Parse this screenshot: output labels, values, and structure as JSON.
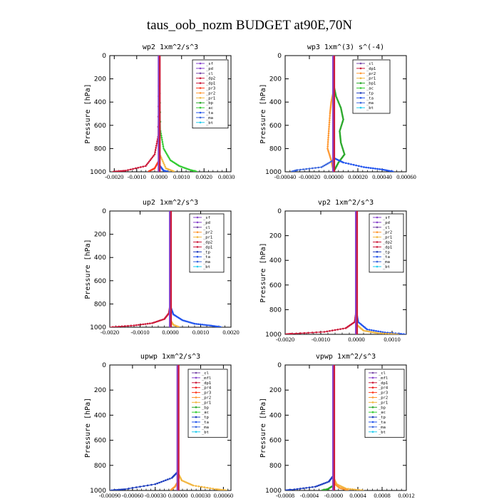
{
  "figure_title": "taus_oob_nozm  BUDGET at90E,70N",
  "colors": {
    "_sf": "#8844cc",
    "_pd": "#8844cc",
    "_cl": "#7a4aa8",
    "_mfl": "#8844cc",
    "_dp1": "#cc1a3a",
    "_dp2": "#cc1a3a",
    "_dp4": "#cc1a3a",
    "_pr1": "#f2b640",
    "_pr2": "#ff9933",
    "_pr3": "#ff3b1f",
    "_pr4": "#ee2222",
    "_bp": "#2aa82a",
    "_bp1": "#2aa82a",
    "_ac": "#33cc33",
    "_tp": "#1f3fbf",
    "_ta": "#2255ee",
    "_ma": "#3a66dd",
    "_bt": "#22ccee"
  },
  "chart_data": [
    {
      "type": "line",
      "title": "wp2  1xm^2/s^3",
      "ylabel": "Pressure [hPa]",
      "yticks": [
        "0",
        "200",
        "400",
        "600",
        "800",
        "1000"
      ],
      "ylim": [
        0,
        1000
      ],
      "xlim": [
        -0.0022,
        0.0032
      ],
      "xticks": [
        -0.002,
        -0.001,
        0.0,
        0.001,
        0.002,
        0.003
      ],
      "xtick_labels": [
        "-0.0020",
        "-0.0010",
        "0.0000",
        "0.0010",
        "0.0020",
        "0.0030"
      ],
      "legend": [
        "_sf",
        "_pd",
        "_cl",
        "_dp2",
        "_dp1",
        "_pr3",
        "_pr2",
        "_pr1",
        "_bp",
        "_ac",
        "_ta",
        "_ma",
        "_bt"
      ],
      "series": [
        {
          "name": "_dp2",
          "points": [
            [
              0,
              0
            ],
            [
              -5e-05,
              700
            ],
            [
              -0.0002,
              850
            ],
            [
              -0.0006,
              950
            ],
            [
              -0.0015,
              990
            ],
            [
              -0.0021,
              1000
            ]
          ]
        },
        {
          "name": "_ac",
          "points": [
            [
              0,
              0
            ],
            [
              6e-05,
              650
            ],
            [
              0.0002,
              800
            ],
            [
              0.0005,
              900
            ],
            [
              0.0009,
              950
            ],
            [
              0.0014,
              985
            ],
            [
              0.0017,
              1000
            ]
          ]
        },
        {
          "name": "_pr1",
          "points": [
            [
              0,
              0
            ],
            [
              3e-05,
              850
            ],
            [
              0.0003,
              970
            ],
            [
              0.0007,
              1000
            ]
          ]
        },
        {
          "name": "_pr3",
          "points": [
            [
              0,
              0
            ],
            [
              0,
              900
            ],
            [
              -0.0002,
              970
            ],
            [
              -0.0005,
              1000
            ]
          ]
        },
        {
          "name": "_ta",
          "points": [
            [
              0,
              0
            ],
            [
              0,
              940
            ],
            [
              0.0002,
              990
            ],
            [
              0.0004,
              1000
            ]
          ]
        },
        {
          "name": "_pd",
          "points": [
            [
              0,
              0
            ],
            [
              0,
              1000
            ]
          ]
        },
        {
          "name": "_dp1",
          "points": [
            [
              0,
              0
            ],
            [
              0,
              1000
            ]
          ]
        }
      ]
    },
    {
      "type": "line",
      "title": "wp3  1xm^(3) s^(-4)",
      "ylabel": "Pressure [hPa]",
      "yticks": [
        "0",
        "200",
        "400",
        "600",
        "800",
        "1000"
      ],
      "ylim": [
        0,
        1000
      ],
      "xlim": [
        -0.0004,
        0.0006
      ],
      "xticks": [
        -0.0004,
        -0.0002,
        0.0,
        0.0002,
        0.0004,
        0.0006
      ],
      "xtick_labels": [
        "-0.00040",
        "-0.00020",
        "0.00000",
        "0.00020",
        "0.00040",
        "0.00060"
      ],
      "legend": [
        "_cl",
        "_dp1",
        "_pr2",
        "_pr1",
        "_bp1",
        "_ac",
        "_tp",
        "_ta",
        "_ma",
        "_bt"
      ],
      "series": [
        {
          "name": "_bp1",
          "points": [
            [
              0,
              0
            ],
            [
              0,
              250
            ],
            [
              2e-05,
              350
            ],
            [
              6e-05,
              450
            ],
            [
              8e-05,
              550
            ],
            [
              5e-05,
              650
            ],
            [
              6e-05,
              750
            ],
            [
              9e-05,
              850
            ],
            [
              4e-05,
              920
            ],
            [
              0,
              1000
            ]
          ]
        },
        {
          "name": "_pr2",
          "points": [
            [
              0,
              0
            ],
            [
              0,
              300
            ],
            [
              -2e-05,
              400
            ],
            [
              -3e-05,
              500
            ],
            [
              -4e-05,
              650
            ],
            [
              -5e-05,
              800
            ],
            [
              -2e-05,
              900
            ],
            [
              0,
              1000
            ]
          ]
        },
        {
          "name": "_ta",
          "points": [
            [
              0,
              0
            ],
            [
              0,
              880
            ],
            [
              8e-05,
              920
            ],
            [
              0.00025,
              960
            ],
            [
              0.0004,
              980
            ],
            [
              0.0005,
              1000
            ]
          ]
        },
        {
          "name": "_ma",
          "points": [
            [
              0,
              0
            ],
            [
              0,
              900
            ],
            [
              -0.0001,
              960
            ],
            [
              -0.0003,
              985
            ],
            [
              -0.00035,
              1000
            ]
          ]
        },
        {
          "name": "_dp1",
          "points": [
            [
              0,
              0
            ],
            [
              0,
              1000
            ]
          ]
        },
        {
          "name": "_cl",
          "points": [
            [
              0,
              0
            ],
            [
              0,
              1000
            ]
          ]
        }
      ]
    },
    {
      "type": "line",
      "title": "up2  1xm^2/s^3",
      "ylabel": "Pressure [hPa]",
      "yticks": [
        "0",
        "200",
        "400",
        "600",
        "800",
        "1000"
      ],
      "ylim": [
        0,
        1000
      ],
      "xlim": [
        -0.002,
        0.002
      ],
      "xticks": [
        -0.002,
        -0.001,
        0.0,
        0.001,
        0.002
      ],
      "xtick_labels": [
        "-0.0020",
        "-0.0010",
        "0.0000",
        "0.0010",
        "0.0020"
      ],
      "legend": [
        "_sf",
        "_pd",
        "_cl",
        "_pr2",
        "_pr1",
        "_dp2",
        "_dp1",
        "_tp",
        "_ta",
        "_ma",
        "_bt"
      ],
      "series": [
        {
          "name": "_dp2",
          "points": [
            [
              0,
              0
            ],
            [
              0,
              800
            ],
            [
              -5e-05,
              880
            ],
            [
              -0.0002,
              930
            ],
            [
              -0.0006,
              965
            ],
            [
              -0.0012,
              985
            ],
            [
              -0.002,
              1000
            ]
          ]
        },
        {
          "name": "_ta",
          "points": [
            [
              0,
              0
            ],
            [
              0,
              820
            ],
            [
              0.0001,
              890
            ],
            [
              0.0004,
              940
            ],
            [
              0.0008,
              970
            ],
            [
              0.0013,
              985
            ],
            [
              0.0017,
              1000
            ]
          ]
        },
        {
          "name": "_pr1",
          "points": [
            [
              0,
              0
            ],
            [
              0,
              940
            ],
            [
              0.0001,
              980
            ],
            [
              0.0003,
              1000
            ]
          ]
        },
        {
          "name": "_sf",
          "points": [
            [
              0,
              0
            ],
            [
              0,
              1000
            ]
          ]
        },
        {
          "name": "_dp1",
          "points": [
            [
              0,
              0
            ],
            [
              0,
              1000
            ]
          ]
        }
      ]
    },
    {
      "type": "line",
      "title": "vp2  1xm^2/s^3",
      "ylabel": "Pressure [hPa]",
      "yticks": [
        "0",
        "200",
        "400",
        "600",
        "800",
        "1000"
      ],
      "ylim": [
        0,
        1000
      ],
      "xlim": [
        -0.002,
        0.0014
      ],
      "xticks": [
        -0.002,
        -0.001,
        0.0,
        0.001
      ],
      "xtick_labels": [
        "-0.0020",
        "-0.0010",
        "0.0000",
        "0.0010"
      ],
      "legend": [
        "_sf",
        "_pd",
        "_cl",
        "_pr2",
        "_pr1",
        "_dp2",
        "_dp1",
        "_tp",
        "_ta",
        "_ma",
        "_bt"
      ],
      "series": [
        {
          "name": "_dp2",
          "points": [
            [
              0,
              0
            ],
            [
              0,
              800
            ],
            [
              -5e-05,
              900
            ],
            [
              -0.0003,
              950
            ],
            [
              -0.0009,
              980
            ],
            [
              -0.0018,
              995
            ],
            [
              -0.002,
              1000
            ]
          ]
        },
        {
          "name": "_ta",
          "points": [
            [
              0,
              0
            ],
            [
              0,
              820
            ],
            [
              5e-05,
              900
            ],
            [
              0.0003,
              960
            ],
            [
              0.0008,
              985
            ],
            [
              0.0014,
              1000
            ]
          ]
        },
        {
          "name": "_pr1",
          "points": [
            [
              0,
              0
            ],
            [
              0,
              920
            ],
            [
              0.0002,
              970
            ],
            [
              0.0006,
              990
            ],
            [
              0.0012,
              1000
            ]
          ]
        },
        {
          "name": "_sf",
          "points": [
            [
              0,
              0
            ],
            [
              0,
              1000
            ]
          ]
        },
        {
          "name": "_dp1",
          "points": [
            [
              0,
              0
            ],
            [
              0,
              1000
            ]
          ]
        }
      ]
    },
    {
      "type": "line",
      "title": "upwp  1xm^2/s^3",
      "ylabel": "Pressure [hPa]",
      "yticks": [
        "0",
        "200",
        "400",
        "600",
        "800",
        "1000"
      ],
      "ylim": [
        0,
        1000
      ],
      "xlim": [
        -0.0009,
        0.0007
      ],
      "xticks": [
        -0.0009,
        -0.0006,
        -0.0003,
        0.0,
        0.0003,
        0.0006
      ],
      "xtick_labels": [
        "-0.00090",
        "-0.00060",
        "-0.00030",
        "0.00000",
        "0.00030",
        "0.00060"
      ],
      "legend": [
        "_cl",
        "_mfl",
        "_dp1",
        "_pr4",
        "_pr3",
        "_pr2",
        "_pr1",
        "_bp",
        "_ac",
        "_tp",
        "_ta",
        "_ma",
        "_bt"
      ],
      "series": [
        {
          "name": "_tp",
          "points": [
            [
              0,
              0
            ],
            [
              0,
              850
            ],
            [
              -8e-05,
              900
            ],
            [
              -0.0003,
              950
            ],
            [
              -0.0007,
              990
            ],
            [
              -0.0009,
              1000
            ]
          ]
        },
        {
          "name": "_pr1",
          "points": [
            [
              0,
              0
            ],
            [
              0,
              860
            ],
            [
              5e-05,
              920
            ],
            [
              0.0002,
              960
            ],
            [
              0.0005,
              990
            ],
            [
              0.00065,
              1000
            ]
          ]
        },
        {
          "name": "_pr2",
          "points": [
            [
              0,
              0
            ],
            [
              0,
              930
            ],
            [
              -4e-05,
              970
            ],
            [
              -0.0001,
              1000
            ]
          ]
        },
        {
          "name": "_cl",
          "points": [
            [
              0,
              0
            ],
            [
              0,
              1000
            ]
          ]
        },
        {
          "name": "_dp1",
          "points": [
            [
              0,
              0
            ],
            [
              0,
              1000
            ]
          ]
        }
      ]
    },
    {
      "type": "line",
      "title": "vpwp  1xm^2/s^3",
      "ylabel": "Pressure [hPa]",
      "yticks": [
        "0",
        "200",
        "400",
        "600",
        "800",
        "1000"
      ],
      "ylim": [
        0,
        1000
      ],
      "xlim": [
        -0.0008,
        0.0012
      ],
      "xticks": [
        -0.0008,
        -0.0004,
        0.0,
        0.0004,
        0.0008,
        0.0012
      ],
      "xtick_labels": [
        "-0.0008",
        "-0.0004",
        "-0.0000",
        "0.0004",
        "0.0008",
        "0.0012"
      ],
      "legend": [
        "_cl",
        "_mfl",
        "_dp1",
        "_pr4",
        "_pr3",
        "_pr2",
        "_pr1",
        "_bp",
        "_ac",
        "_tp",
        "_ta",
        "_ma",
        "_bt"
      ],
      "series": [
        {
          "name": "_tp",
          "points": [
            [
              0,
              0
            ],
            [
              0,
              880
            ],
            [
              -8e-05,
              930
            ],
            [
              -0.0003,
              970
            ],
            [
              -0.0007,
              995
            ],
            [
              -0.0008,
              1000
            ]
          ]
        },
        {
          "name": "_pr1",
          "points": [
            [
              0,
              0
            ],
            [
              0,
              900
            ],
            [
              5e-05,
              950
            ],
            [
              0.0002,
              985
            ],
            [
              0.0005,
              1000
            ]
          ]
        },
        {
          "name": "_pr2",
          "points": [
            [
              0,
              0
            ],
            [
              0,
              940
            ],
            [
              0.0001,
              980
            ],
            [
              0.00025,
              1000
            ]
          ]
        },
        {
          "name": "_bp",
          "points": [
            [
              0,
              0
            ],
            [
              0,
              960
            ],
            [
              -0.0001,
              990
            ],
            [
              -0.0002,
              1000
            ]
          ]
        },
        {
          "name": "_cl",
          "points": [
            [
              0,
              0
            ],
            [
              0,
              1000
            ]
          ]
        },
        {
          "name": "_dp1",
          "points": [
            [
              0,
              0
            ],
            [
              0,
              1000
            ]
          ]
        }
      ]
    }
  ]
}
